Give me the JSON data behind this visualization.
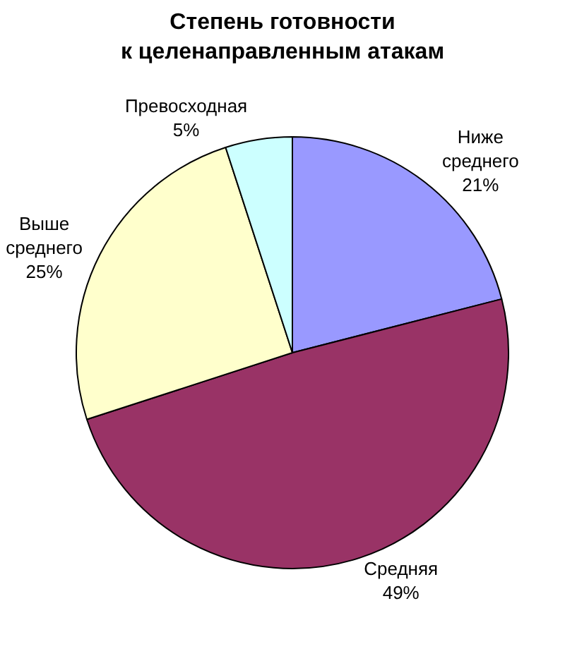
{
  "chart_data": {
    "type": "pie",
    "title": "Степень готовности\nк целенаправленным атакам",
    "categories": [
      "Ниже среднего",
      "Средняя",
      "Выше среднего",
      "Превосходная"
    ],
    "values": [
      21,
      49,
      25,
      5
    ],
    "value_labels": [
      "21%",
      "49%",
      "25%",
      "5%"
    ],
    "colors": [
      "#9999ff",
      "#993366",
      "#ffffcc",
      "#ccffff"
    ],
    "legend": false
  }
}
